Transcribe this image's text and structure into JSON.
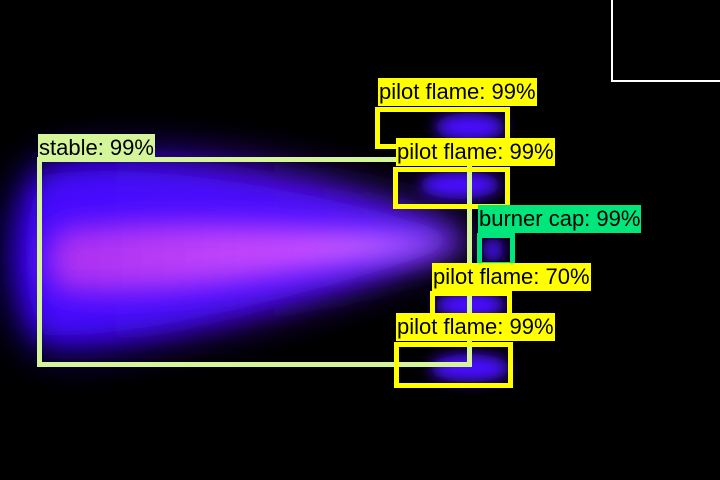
{
  "image": {
    "description_colors": {
      "background": "#000000",
      "flame_core": "#c040ff",
      "flame_outer": "#3a00ff"
    }
  },
  "detections": [
    {
      "id": "stable",
      "label": "stable: 99%",
      "color": "#d4f59a"
    },
    {
      "id": "pilot-flame-1",
      "label": "pilot flame: 99%",
      "color": "#ffff00"
    },
    {
      "id": "pilot-flame-2",
      "label": "pilot flame: 99%",
      "color": "#ffff00"
    },
    {
      "id": "burner-cap",
      "label": "burner cap: 99%",
      "color": "#00e67a"
    },
    {
      "id": "pilot-flame-3",
      "label": "pilot flame: 70%",
      "color": "#ffff00"
    },
    {
      "id": "pilot-flame-4",
      "label": "pilot flame: 99%",
      "color": "#ffff00"
    }
  ]
}
